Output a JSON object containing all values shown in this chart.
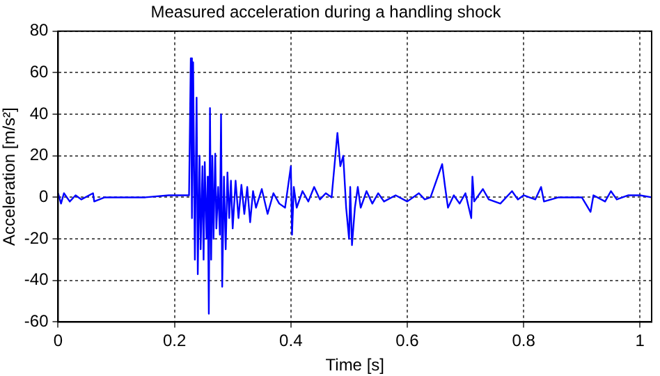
{
  "chart_data": {
    "type": "line",
    "title": "Measured acceleration during a handling shock",
    "xlabel": "Time [s]",
    "ylabel": "Acceleration [m/s²]",
    "xlim": [
      0,
      1.02
    ],
    "xticks": [
      0,
      0.2,
      0.4,
      0.6,
      0.8,
      1
    ],
    "ylim": [
      -60,
      80
    ],
    "yticks": [
      -60,
      -40,
      -20,
      0,
      20,
      40,
      60,
      80
    ],
    "grid": true,
    "legend": false,
    "marker": "none",
    "line_style": "solid",
    "series": [
      {
        "color": "#0000ff",
        "x": [
          0,
          0.005,
          0.01,
          0.02,
          0.03,
          0.04,
          0.06,
          0.062,
          0.08,
          0.15,
          0.19,
          0.225,
          0.228,
          0.23,
          0.232,
          0.235,
          0.238,
          0.24,
          0.243,
          0.245,
          0.248,
          0.25,
          0.252,
          0.255,
          0.257,
          0.259,
          0.261,
          0.263,
          0.265,
          0.267,
          0.27,
          0.272,
          0.275,
          0.278,
          0.28,
          0.282,
          0.285,
          0.288,
          0.291,
          0.294,
          0.297,
          0.3,
          0.305,
          0.31,
          0.315,
          0.32,
          0.325,
          0.33,
          0.335,
          0.34,
          0.35,
          0.36,
          0.37,
          0.38,
          0.39,
          0.4,
          0.402,
          0.405,
          0.41,
          0.42,
          0.43,
          0.44,
          0.45,
          0.46,
          0.47,
          0.48,
          0.485,
          0.49,
          0.495,
          0.5,
          0.502,
          0.505,
          0.51,
          0.515,
          0.52,
          0.53,
          0.54,
          0.55,
          0.56,
          0.58,
          0.6,
          0.62,
          0.63,
          0.64,
          0.66,
          0.665,
          0.67,
          0.68,
          0.69,
          0.7,
          0.71,
          0.712,
          0.715,
          0.73,
          0.74,
          0.76,
          0.78,
          0.79,
          0.8,
          0.82,
          0.83,
          0.835,
          0.86,
          0.9,
          0.915,
          0.92,
          0.94,
          0.95,
          0.96,
          0.98,
          1,
          1.02
        ],
        "values": [
          2,
          -3,
          2,
          -2,
          1,
          -1,
          2,
          -2,
          0,
          0,
          1,
          1,
          67,
          -10,
          65,
          -30,
          48,
          -37,
          20,
          -25,
          15,
          -30,
          17,
          -20,
          10,
          -56,
          43,
          -30,
          20,
          -20,
          21,
          -15,
          5,
          -18,
          40,
          -43,
          10,
          -25,
          12,
          -10,
          8,
          -15,
          8,
          -10,
          6,
          -8,
          5,
          -12,
          3,
          -5,
          4,
          -8,
          2,
          -3,
          -5,
          15,
          -18,
          5,
          -5,
          3,
          -2,
          5,
          -1,
          2,
          0,
          31,
          15,
          20,
          -5,
          -20,
          5,
          -23,
          -5,
          5,
          -5,
          3,
          -3,
          2,
          -2,
          1,
          -2,
          2,
          -1,
          0,
          16,
          5,
          -5,
          1,
          -3,
          2,
          -10,
          10,
          -2,
          4,
          -1,
          -3,
          3,
          -1,
          1,
          -1,
          5,
          -2,
          0,
          0,
          -7,
          1,
          -2,
          3,
          -1,
          1,
          1,
          0
        ]
      }
    ]
  }
}
